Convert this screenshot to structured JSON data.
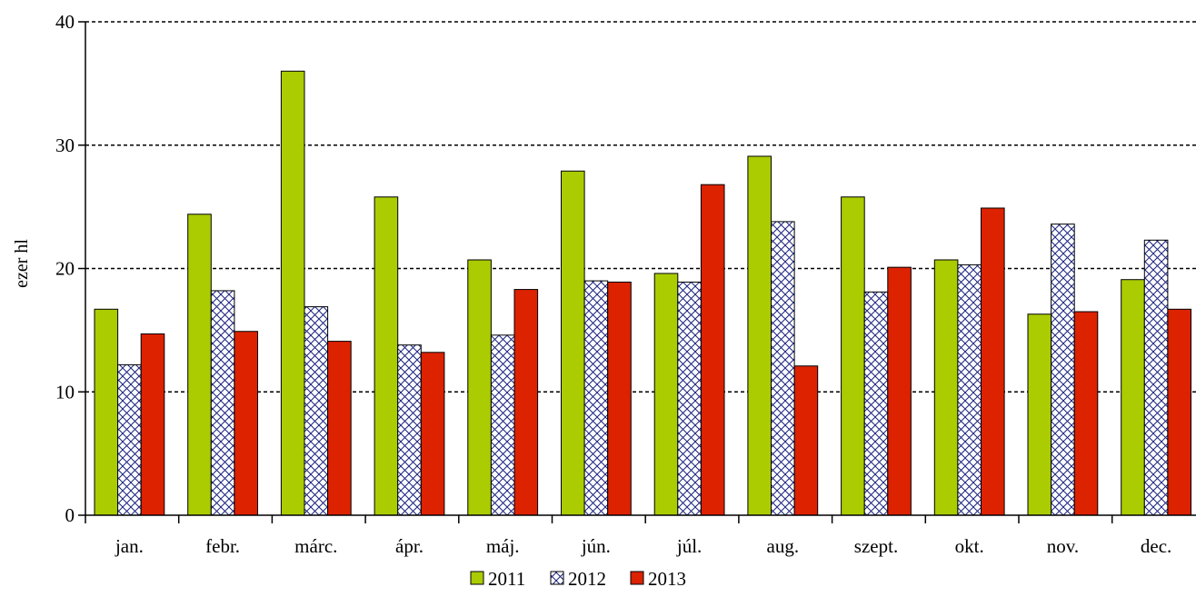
{
  "chart_data": {
    "type": "bar",
    "ylabel": "ezer hl",
    "ylim": [
      0,
      40
    ],
    "yticks": [
      0,
      10,
      20,
      30,
      40
    ],
    "grid": "horizontal-dotted",
    "legend_position": "bottom-center",
    "categories": [
      "jan.",
      "febr.",
      "márc.",
      "ápr.",
      "máj.",
      "jún.",
      "júl.",
      "aug.",
      "szept.",
      "okt.",
      "nov.",
      "dec."
    ],
    "series": [
      {
        "name": "2011",
        "color": "#aacc00",
        "pattern": "solid",
        "values": [
          16.7,
          24.4,
          36.0,
          25.8,
          20.7,
          27.9,
          19.6,
          29.1,
          25.8,
          20.7,
          16.3,
          19.1
        ]
      },
      {
        "name": "2012",
        "color": "#1a237e",
        "pattern": "crosshatch",
        "values": [
          12.2,
          18.2,
          16.9,
          13.8,
          14.6,
          19.0,
          18.9,
          23.8,
          18.1,
          20.3,
          23.6,
          22.3
        ]
      },
      {
        "name": "2013",
        "color": "#dd2200",
        "pattern": "solid",
        "values": [
          14.7,
          14.9,
          14.1,
          13.2,
          18.3,
          18.9,
          26.8,
          12.1,
          20.1,
          24.9,
          16.5,
          16.7
        ]
      }
    ]
  }
}
